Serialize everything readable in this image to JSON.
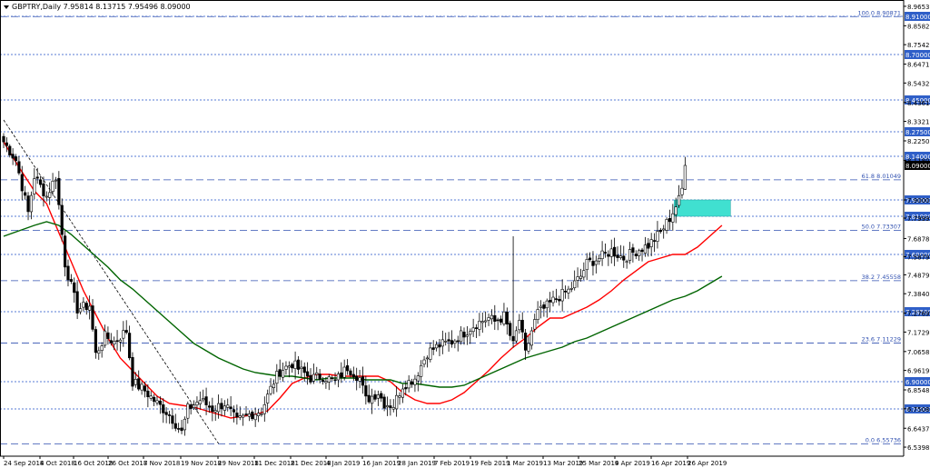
{
  "chart_data": {
    "type": "candlestick",
    "title": "GBPTRY,Daily  7.95814 8.13715 7.95496 8.09000",
    "symbol": "GBPTRY",
    "timeframe": "Daily",
    "ohlc_header": {
      "open": 7.95814,
      "high": 8.13715,
      "low": 7.95496,
      "close": 8.09
    },
    "ylim": [
      6.5,
      9.0
    ],
    "grid": false,
    "y_ticks": [
      "8.96530",
      "8.85820",
      "8.75425",
      "8.64715",
      "8.54320",
      "8.43610",
      "8.33215",
      "8.22505",
      "8.11800",
      "7.90005",
      "7.79990",
      "7.68785",
      "7.58790",
      "7.48795",
      "7.38400",
      "7.27690",
      "7.17295",
      "7.06585",
      "6.96190",
      "6.85480",
      "6.75085",
      "6.64375",
      "6.53980"
    ],
    "x_ticks": [
      "24 Sep 2018",
      "4 Oct 2018",
      "16 Oct 2018",
      "26 Oct 2018",
      "7 Nov 2018",
      "19 Nov 2018",
      "29 Nov 2018",
      "11 Dec 2018",
      "21 Dec 2018",
      "4 Jan 2019",
      "16 Jan 2019",
      "28 Jan 2019",
      "7 Feb 2019",
      "19 Feb 2019",
      "1 Mar 2019",
      "13 Mar 2019",
      "25 Mar 2019",
      "4 Apr 2019",
      "16 Apr 2019",
      "26 Apr 2019"
    ],
    "horizontal_levels": [
      {
        "value": 8.91,
        "label": "8.91000",
        "style": "dotted"
      },
      {
        "value": 8.7,
        "label": "8.70000",
        "style": "dotted"
      },
      {
        "value": 8.45,
        "label": "8.45000",
        "style": "dotted"
      },
      {
        "value": 8.275,
        "label": "8.27500",
        "style": "dotted"
      },
      {
        "value": 8.14,
        "label": "8.14000",
        "style": "dotted"
      },
      {
        "value": 7.9,
        "label": "7.90000",
        "style": "dotted"
      },
      {
        "value": 7.81,
        "label": "7.81000",
        "style": "dotted"
      },
      {
        "value": 7.6,
        "label": "7.60000",
        "style": "dotted"
      },
      {
        "value": 7.285,
        "label": "7.28500",
        "style": "dotted"
      },
      {
        "value": 6.9,
        "label": "6.90000",
        "style": "dotted"
      },
      {
        "value": 6.75,
        "label": "6.75000",
        "style": "dotted"
      }
    ],
    "fibonacci": [
      {
        "value": 8.90871,
        "label": "100.0 8.90871"
      },
      {
        "value": 8.01049,
        "label": "61.8 8.01049"
      },
      {
        "value": 7.73307,
        "label": "50.0 7.73307"
      },
      {
        "value": 7.45558,
        "label": "38.2 7.45558"
      },
      {
        "value": 7.11229,
        "label": "23.6 7.11229"
      },
      {
        "value": 6.55736,
        "label": "0.0 6.55736"
      }
    ],
    "current_price": {
      "value": 8.09,
      "label": "8.09000"
    },
    "zone": {
      "from_date": "22 Apr 2019",
      "to_date": "29 Apr 2019",
      "low": 7.81,
      "high": 7.9,
      "color": "#40e0d0"
    },
    "trendline": {
      "from": [
        "24 Sep 2018",
        8.34
      ],
      "to": [
        "29 Nov 2018",
        6.56
      ],
      "style": "dashed"
    },
    "moving_averages": [
      {
        "type": "fast",
        "color": "#ff0000",
        "points": [
          [
            0,
            8.22
          ],
          [
            5,
            8.08
          ],
          [
            10,
            7.95
          ],
          [
            14,
            7.88
          ],
          [
            18,
            7.72
          ],
          [
            22,
            7.56
          ],
          [
            26,
            7.4
          ],
          [
            30,
            7.27
          ],
          [
            34,
            7.14
          ],
          [
            38,
            7.03
          ],
          [
            42,
            6.96
          ],
          [
            46,
            6.89
          ],
          [
            50,
            6.82
          ],
          [
            54,
            6.78
          ],
          [
            58,
            6.77
          ],
          [
            62,
            6.76
          ],
          [
            66,
            6.74
          ],
          [
            70,
            6.72
          ],
          [
            74,
            6.7
          ],
          [
            78,
            6.71
          ],
          [
            82,
            6.72
          ],
          [
            86,
            6.74
          ],
          [
            90,
            6.81
          ],
          [
            94,
            6.89
          ],
          [
            98,
            6.92
          ],
          [
            102,
            6.94
          ],
          [
            106,
            6.94
          ],
          [
            110,
            6.93
          ],
          [
            114,
            6.93
          ],
          [
            118,
            6.93
          ],
          [
            122,
            6.93
          ],
          [
            126,
            6.9
          ],
          [
            130,
            6.84
          ],
          [
            134,
            6.8
          ],
          [
            138,
            6.78
          ],
          [
            142,
            6.78
          ],
          [
            146,
            6.8
          ],
          [
            150,
            6.84
          ],
          [
            154,
            6.9
          ],
          [
            158,
            6.96
          ],
          [
            162,
            7.03
          ],
          [
            166,
            7.09
          ],
          [
            170,
            7.14
          ],
          [
            174,
            7.2
          ],
          [
            178,
            7.25
          ],
          [
            182,
            7.25
          ],
          [
            186,
            7.28
          ],
          [
            190,
            7.31
          ],
          [
            194,
            7.35
          ],
          [
            198,
            7.4
          ],
          [
            202,
            7.46
          ],
          [
            206,
            7.51
          ],
          [
            210,
            7.56
          ],
          [
            214,
            7.58
          ],
          [
            218,
            7.6
          ],
          [
            222,
            7.6
          ],
          [
            226,
            7.64
          ],
          [
            230,
            7.7
          ],
          [
            234,
            7.76
          ]
        ]
      },
      {
        "type": "slow",
        "color": "#006400",
        "points": [
          [
            0,
            7.7
          ],
          [
            5,
            7.73
          ],
          [
            10,
            7.76
          ],
          [
            14,
            7.78
          ],
          [
            18,
            7.76
          ],
          [
            22,
            7.71
          ],
          [
            26,
            7.65
          ],
          [
            30,
            7.59
          ],
          [
            34,
            7.53
          ],
          [
            38,
            7.46
          ],
          [
            42,
            7.41
          ],
          [
            46,
            7.35
          ],
          [
            50,
            7.29
          ],
          [
            54,
            7.23
          ],
          [
            58,
            7.17
          ],
          [
            62,
            7.11
          ],
          [
            66,
            7.07
          ],
          [
            70,
            7.03
          ],
          [
            74,
            7.0
          ],
          [
            78,
            6.97
          ],
          [
            82,
            6.95
          ],
          [
            86,
            6.94
          ],
          [
            90,
            6.93
          ],
          [
            94,
            6.93
          ],
          [
            98,
            6.92
          ],
          [
            102,
            6.91
          ],
          [
            106,
            6.92
          ],
          [
            110,
            6.92
          ],
          [
            114,
            6.92
          ],
          [
            118,
            6.91
          ],
          [
            122,
            6.91
          ],
          [
            126,
            6.91
          ],
          [
            130,
            6.89
          ],
          [
            134,
            6.89
          ],
          [
            138,
            6.88
          ],
          [
            142,
            6.87
          ],
          [
            146,
            6.87
          ],
          [
            150,
            6.88
          ],
          [
            154,
            6.91
          ],
          [
            158,
            6.94
          ],
          [
            162,
            6.97
          ],
          [
            166,
            7.0
          ],
          [
            170,
            7.03
          ],
          [
            174,
            7.05
          ],
          [
            178,
            7.07
          ],
          [
            182,
            7.09
          ],
          [
            186,
            7.12
          ],
          [
            190,
            7.14
          ],
          [
            194,
            7.17
          ],
          [
            198,
            7.2
          ],
          [
            202,
            7.23
          ],
          [
            206,
            7.26
          ],
          [
            210,
            7.29
          ],
          [
            214,
            7.32
          ],
          [
            218,
            7.35
          ],
          [
            222,
            7.37
          ],
          [
            226,
            7.4
          ],
          [
            230,
            7.44
          ],
          [
            234,
            7.48
          ]
        ]
      }
    ],
    "anchors": [
      [
        0,
        8.22
      ],
      [
        4,
        8.12
      ],
      [
        8,
        7.83
      ],
      [
        10,
        8.03
      ],
      [
        14,
        7.92
      ],
      [
        17,
        8.03
      ],
      [
        20,
        7.55
      ],
      [
        24,
        7.3
      ],
      [
        28,
        7.32
      ],
      [
        30,
        7.05
      ],
      [
        33,
        7.15
      ],
      [
        36,
        7.12
      ],
      [
        40,
        7.18
      ],
      [
        42,
        6.9
      ],
      [
        46,
        6.85
      ],
      [
        50,
        6.78
      ],
      [
        54,
        6.72
      ],
      [
        58,
        6.62
      ],
      [
        60,
        6.75
      ],
      [
        64,
        6.8
      ],
      [
        68,
        6.75
      ],
      [
        72,
        6.78
      ],
      [
        76,
        6.68
      ],
      [
        80,
        6.72
      ],
      [
        84,
        6.74
      ],
      [
        88,
        6.9
      ],
      [
        90,
        6.96
      ],
      [
        94,
        7.0
      ],
      [
        96,
        6.97
      ],
      [
        100,
        6.92
      ],
      [
        104,
        6.93
      ],
      [
        108,
        6.9
      ],
      [
        112,
        6.98
      ],
      [
        116,
        6.92
      ],
      [
        118,
        6.8
      ],
      [
        122,
        6.84
      ],
      [
        124,
        6.78
      ],
      [
        127,
        6.77
      ],
      [
        130,
        6.88
      ],
      [
        134,
        6.92
      ],
      [
        138,
        7.06
      ],
      [
        142,
        7.1
      ],
      [
        146,
        7.12
      ],
      [
        150,
        7.17
      ],
      [
        154,
        7.22
      ],
      [
        158,
        7.25
      ],
      [
        160,
        7.23
      ],
      [
        163,
        7.26
      ],
      [
        166,
        7.1
      ],
      [
        168,
        7.24
      ],
      [
        170,
        7.05
      ],
      [
        172,
        7.18
      ],
      [
        174,
        7.28
      ],
      [
        176,
        7.3
      ],
      [
        180,
        7.36
      ],
      [
        184,
        7.4
      ],
      [
        188,
        7.48
      ],
      [
        190,
        7.55
      ],
      [
        194,
        7.58
      ],
      [
        198,
        7.62
      ],
      [
        202,
        7.58
      ],
      [
        206,
        7.62
      ],
      [
        210,
        7.65
      ],
      [
        214,
        7.72
      ],
      [
        217,
        7.8
      ],
      [
        220,
        7.9
      ],
      [
        221,
        7.96
      ],
      [
        222,
        8.09
      ]
    ]
  },
  "series_colors": {
    "fast_ma": "#ff0000",
    "slow_ma": "#006400",
    "zone": "#40e0d0",
    "grid_dotted": "#2050c8",
    "label_box": "#2f5fc8"
  }
}
